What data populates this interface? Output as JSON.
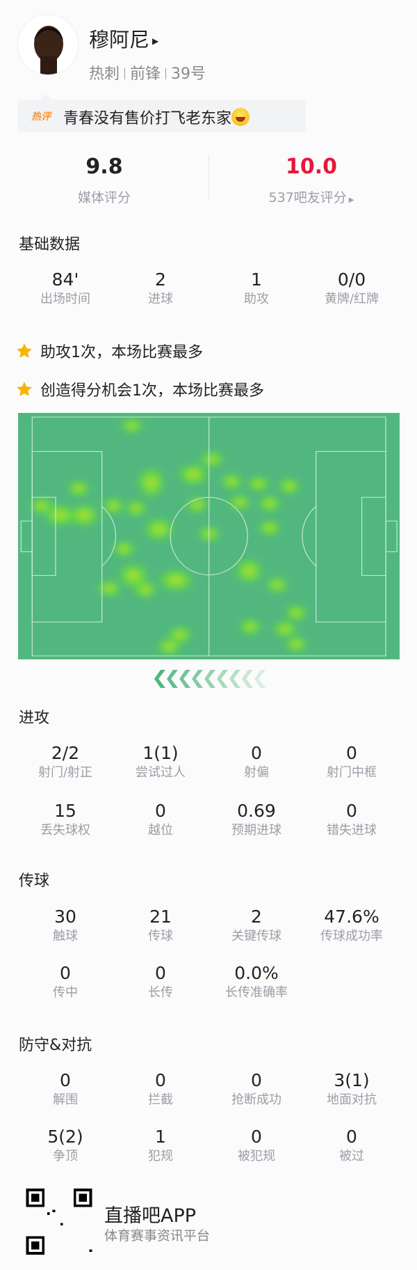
{
  "player": {
    "name": "穆阿尼",
    "team": "热刺",
    "position": "前锋",
    "number": "39号"
  },
  "comment": {
    "badge": "热评",
    "text": "青春没有售价打飞老东家",
    "emoji": "laughing-tears-emoji"
  },
  "ratings": {
    "media_value": "9.8",
    "media_label": "媒体评分",
    "fan_value": "10.0",
    "fan_label": "537吧友评分",
    "fan_color": "#e8173a"
  },
  "basic": {
    "title": "基础数据",
    "stats": [
      {
        "value": "84'",
        "label": "出场时间"
      },
      {
        "value": "2",
        "label": "进球"
      },
      {
        "value": "1",
        "label": "助攻"
      },
      {
        "value": "0/0",
        "label": "黄牌/红牌"
      }
    ]
  },
  "highlights": [
    "助攻1次，本场比赛最多",
    "创造得分机会1次，本场比赛最多"
  ],
  "attack": {
    "title": "进攻",
    "stats": [
      {
        "value": "2/2",
        "label": "射门/射正"
      },
      {
        "value": "1(1)",
        "label": "尝试过人"
      },
      {
        "value": "0",
        "label": "射偏"
      },
      {
        "value": "0",
        "label": "射门中框"
      },
      {
        "value": "15",
        "label": "丢失球权"
      },
      {
        "value": "0",
        "label": "越位"
      },
      {
        "value": "0.69",
        "label": "预期进球"
      },
      {
        "value": "0",
        "label": "错失进球"
      }
    ]
  },
  "passing": {
    "title": "传球",
    "stats": [
      {
        "value": "30",
        "label": "触球"
      },
      {
        "value": "21",
        "label": "传球"
      },
      {
        "value": "2",
        "label": "关键传球"
      },
      {
        "value": "47.6%",
        "label": "传球成功率"
      },
      {
        "value": "0",
        "label": "传中"
      },
      {
        "value": "0",
        "label": "长传"
      },
      {
        "value": "0.0%",
        "label": "长传准确率"
      }
    ]
  },
  "defense": {
    "title": "防守&对抗",
    "stats": [
      {
        "value": "0",
        "label": "解围"
      },
      {
        "value": "0",
        "label": "拦截"
      },
      {
        "value": "0",
        "label": "抢断成功"
      },
      {
        "value": "3(1)",
        "label": "地面对抗"
      },
      {
        "value": "5(2)",
        "label": "争顶"
      },
      {
        "value": "1",
        "label": "犯规"
      },
      {
        "value": "0",
        "label": "被犯规"
      },
      {
        "value": "0",
        "label": "被过"
      }
    ]
  },
  "footer": {
    "app": "直播吧APP",
    "slogan": "体育赛事资讯平台"
  },
  "colors": {
    "pitch": "#52b77f",
    "star": "#f7b500",
    "heat": "#7be83a"
  }
}
